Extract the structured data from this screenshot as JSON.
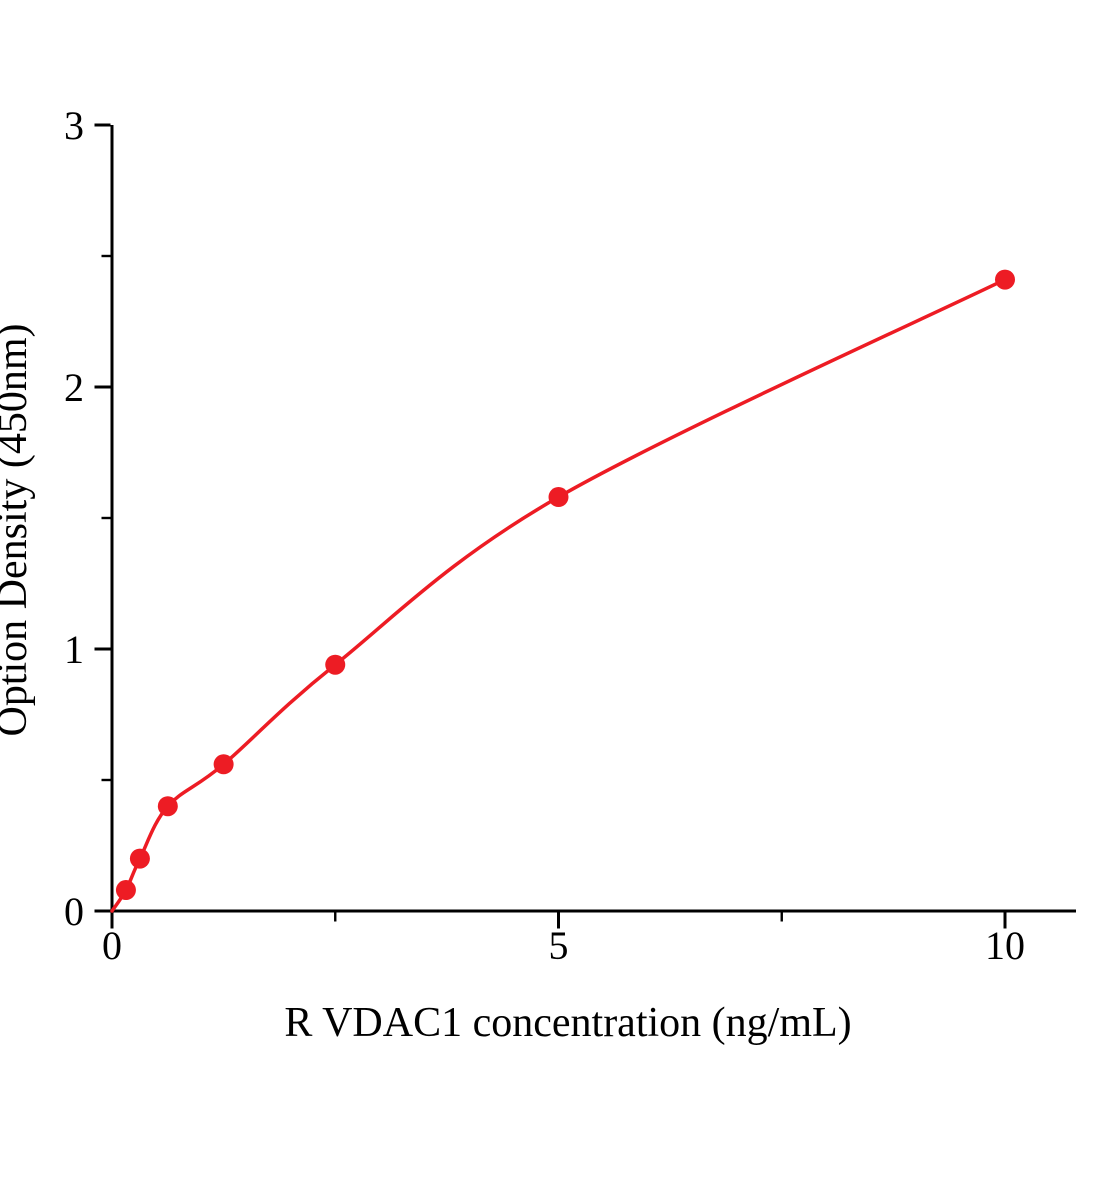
{
  "figure": {
    "background_color": "#ffffff",
    "axis_color": "#000000",
    "accent_color": "#ed1c24"
  },
  "chart_data": {
    "type": "scatter",
    "title": "",
    "xlabel": "R VDAC1  concentration (ng/mL)",
    "ylabel": "Option Density (450nm)",
    "x": [
      0.156,
      0.3125,
      0.625,
      1.25,
      2.5,
      5,
      10
    ],
    "y": [
      0.08,
      0.2,
      0.4,
      0.56,
      0.94,
      1.58,
      2.41
    ],
    "curve_start": [
      0,
      0
    ],
    "fit_curve": true,
    "xlim": [
      0,
      10.8
    ],
    "ylim": [
      0,
      3
    ],
    "x_major_ticks": [
      0,
      5,
      10
    ],
    "x_major_labels": [
      "0",
      "5",
      "10"
    ],
    "x_minor_ticks": [
      2.5,
      7.5
    ],
    "y_major_ticks": [
      0,
      1,
      2,
      3
    ],
    "y_major_labels": [
      "0",
      "1",
      "2",
      "3"
    ],
    "y_minor_ticks": [
      0.5,
      1.5,
      2.5
    ],
    "line_color": "#ed1c24",
    "marker_color": "#ed1c24",
    "marker_shape": "circle",
    "grid": false,
    "legend": null
  }
}
